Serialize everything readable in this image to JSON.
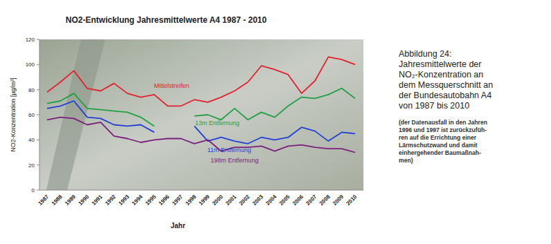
{
  "chart_data": {
    "type": "line",
    "title": "NO2-Entwicklung Jahresmittelwerte A4   1987 - 2010",
    "x_label": "Jahr",
    "y_label": "NO2-Konzentration [µg/m³]",
    "categories": [
      "1987",
      "1988",
      "1989",
      "1990",
      "1991",
      "1992",
      "1993",
      "1994",
      "1995",
      "1996",
      "1997",
      "1998",
      "1999",
      "2000",
      "2001",
      "2002",
      "2003",
      "2004",
      "2005",
      "2006",
      "2007",
      "2008",
      "2009",
      "2010"
    ],
    "ylim": [
      0,
      120
    ],
    "yticks": [
      0,
      20,
      40,
      60,
      80,
      100,
      120
    ],
    "grid": false,
    "series": [
      {
        "name": "Mittelstreifen",
        "color": "#e3202b",
        "values": [
          78,
          86,
          95,
          81,
          79,
          85,
          77,
          74,
          76,
          67,
          67,
          72,
          70,
          74,
          79,
          86,
          99,
          96,
          92,
          77,
          87,
          106,
          104,
          100
        ]
      },
      {
        "name": "13m Entfernung",
        "color": "#1fa043",
        "values": [
          69,
          71,
          77,
          65,
          64,
          63,
          62,
          58,
          51,
          null,
          null,
          59,
          60,
          56,
          65,
          56,
          62,
          58,
          67,
          74,
          73,
          76,
          81,
          73
        ]
      },
      {
        "name": "11m Entfernung",
        "color": "#1f3fd6",
        "values": [
          65,
          67,
          71,
          58,
          57,
          52,
          51,
          52,
          46,
          null,
          null,
          51,
          39,
          42,
          39,
          37,
          42,
          40,
          42,
          50,
          47,
          39,
          46,
          45
        ]
      },
      {
        "name": "198m Entfernung",
        "color": "#7b1f7d",
        "values": [
          56,
          58,
          57,
          52,
          54,
          43,
          41,
          38,
          40,
          41,
          41,
          37,
          40,
          31,
          34,
          34,
          35,
          31,
          35,
          36,
          34,
          33,
          33,
          30
        ]
      }
    ],
    "caption": {
      "heading": [
        "Abbildung 24:",
        "Jahresmittelwerte der",
        "NO₂-Konzentration an",
        "dem Messquerschnitt an",
        "der Bundesautobahn A4",
        "von 1987 bis 2010"
      ],
      "note": [
        "(der Datenausfall in den Jahren",
        "1996 und 1997 ist zurückzufüh-",
        "ren auf die Errichtung einer",
        "Lärmschutzwand und damit",
        "einhergehender Baumaßnah-",
        "men)"
      ]
    }
  }
}
